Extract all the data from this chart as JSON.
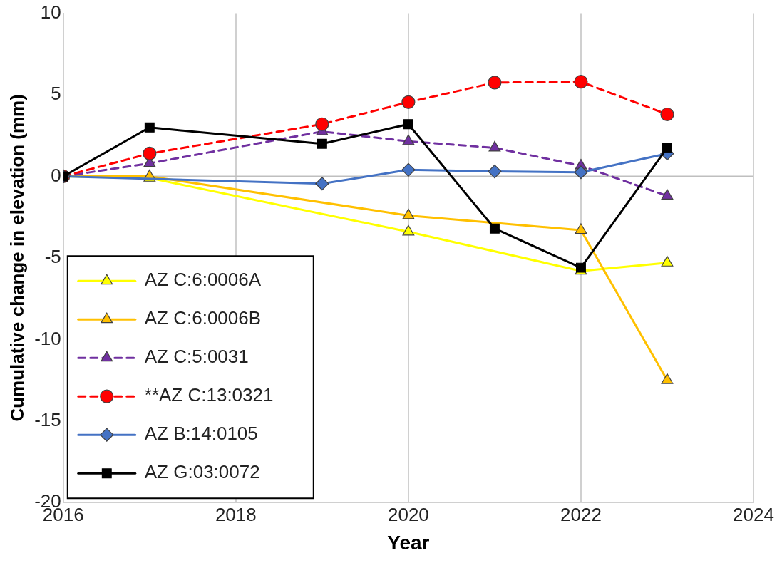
{
  "chart_data": {
    "type": "line",
    "xlabel": "Year",
    "ylabel": "Cumulative change in elevation (mm)",
    "xlim": [
      2016,
      2024
    ],
    "xticks": [
      2016,
      2018,
      2020,
      2022,
      2024
    ],
    "ylim": [
      -20,
      10
    ],
    "yticks": [
      -20,
      -15,
      -10,
      -5,
      0,
      5,
      10
    ],
    "grid": "x",
    "legend": "bottom left",
    "ref_lines": [
      {
        "axis": "y",
        "value": 0,
        "color": "#bfbfbf"
      }
    ],
    "series": [
      {
        "name": "AZ C:6:0006A",
        "color": "#ffff00",
        "marker": "triangle",
        "line_style": "solid",
        "x": [
          2016,
          2017,
          2020,
          2022,
          2023
        ],
        "values": [
          0,
          -0.1,
          -3.4,
          -5.8,
          -5.3
        ]
      },
      {
        "name": "AZ C:6:0006B",
        "color": "#ffc000",
        "marker": "triangle",
        "line_style": "solid",
        "x": [
          2016,
          2017,
          2020,
          2022,
          2023
        ],
        "values": [
          0,
          0,
          -2.4,
          -3.3,
          -12.5
        ]
      },
      {
        "name": "AZ C:5:0031",
        "color": "#7030a0",
        "marker": "triangle",
        "line_style": "dashed",
        "x": [
          2016,
          2017,
          2019,
          2020,
          2021,
          2022,
          2023
        ],
        "values": [
          0,
          0.8,
          2.75,
          2.15,
          1.75,
          0.65,
          -1.2
        ]
      },
      {
        "name": "**AZ C:13:0321",
        "color": "#ff0000",
        "marker": "circle",
        "line_style": "dashed",
        "x": [
          2016,
          2017,
          2019,
          2020,
          2021,
          2022,
          2023
        ],
        "values": [
          0,
          1.4,
          3.2,
          4.55,
          5.75,
          5.8,
          3.8
        ]
      },
      {
        "name": "AZ B:14:0105",
        "color": "#4472c4",
        "marker": "diamond",
        "line_style": "solid",
        "x": [
          2016,
          2019,
          2020,
          2021,
          2022,
          2023
        ],
        "values": [
          0,
          -0.45,
          0.4,
          0.3,
          0.25,
          1.4
        ]
      },
      {
        "name": "AZ G:03:0072",
        "color": "#000000",
        "marker": "square",
        "line_style": "solid",
        "x": [
          2016,
          2017,
          2019,
          2020,
          2021,
          2022,
          2023
        ],
        "values": [
          0,
          3.0,
          2.0,
          3.2,
          -3.2,
          -5.6,
          1.75
        ]
      }
    ]
  }
}
